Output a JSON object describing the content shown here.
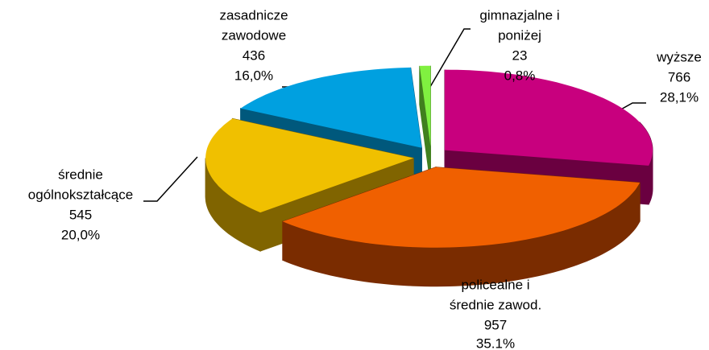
{
  "chart_data": {
    "type": "pie3d",
    "categories": [
      [
        "wyższe"
      ],
      [
        "policealne i",
        "średnie zawod."
      ],
      [
        "średnie",
        "ogólnokształcące"
      ],
      [
        "zasadnicze",
        "zawodowe"
      ],
      [
        "gimnazjalne i",
        "poniżej"
      ]
    ],
    "values": [
      766,
      957,
      545,
      436,
      23
    ],
    "percentages": [
      28.1,
      35.1,
      20.0,
      16.0,
      0.8
    ],
    "percentage_labels": [
      "28,1%",
      "35.1%",
      "20,0%",
      "16,0%",
      "0,8%"
    ],
    "colors": [
      "#c8007e",
      "#f06000",
      "#f0c000",
      "#00a0e0",
      "#80f040"
    ],
    "side_colors": [
      "#6a0040",
      "#7a2c00",
      "#806400",
      "#00587c",
      "#40801e"
    ]
  }
}
